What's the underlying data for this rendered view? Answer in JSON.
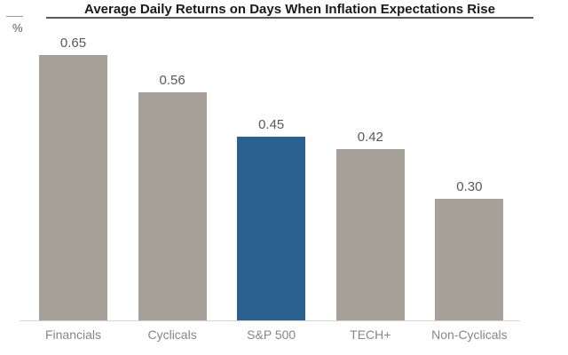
{
  "title": "Average Daily Returns on Days When Inflation Expectations Rise",
  "chart_data": {
    "type": "bar",
    "title": "Average Daily Returns on Days When Inflation Expectations Rise",
    "categories": [
      "Financials",
      "Cyclicals",
      "S&P 500",
      "TECH+",
      "Non-Cyclicals"
    ],
    "values": [
      0.65,
      0.56,
      0.45,
      0.42,
      0.3
    ],
    "value_labels": [
      "0.65",
      "0.56",
      "0.45",
      "0.42",
      "0.30"
    ],
    "xlabel": "",
    "ylabel": "%",
    "ylim": [
      0,
      0.78
    ],
    "grid": false,
    "legend_position": "none",
    "value_labels_position": "above-bars",
    "bar_colors": [
      "#a7a099",
      "#a7a099",
      "#2a6191",
      "#a7a099",
      "#a7a099"
    ],
    "highlight_category": "S&P 500"
  },
  "colors": {
    "bar_default": "#a7a099",
    "bar_highlight": "#2a6191",
    "value_label": "#595959",
    "category_label": "#8a8580",
    "axis_line": "#d6d3d0",
    "title_text": "#1a1a1a",
    "title_underline": "#5a5a5a"
  }
}
